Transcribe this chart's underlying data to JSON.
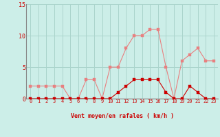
{
  "x": [
    0,
    1,
    2,
    3,
    4,
    5,
    6,
    7,
    8,
    9,
    10,
    11,
    12,
    13,
    14,
    15,
    16,
    17,
    18,
    19,
    20,
    21,
    22,
    23
  ],
  "y_mean": [
    0,
    0,
    0,
    0,
    0,
    0,
    0,
    0,
    0,
    0,
    0,
    1,
    2,
    3,
    3,
    3,
    3,
    1,
    0,
    0,
    2,
    1,
    0,
    0
  ],
  "y_gust": [
    2,
    2,
    2,
    2,
    2,
    0,
    0,
    3,
    3,
    0,
    5,
    5,
    8,
    10,
    10,
    11,
    11,
    5,
    0,
    6,
    7,
    8,
    6,
    6
  ],
  "color_mean": "#cc0000",
  "color_gust": "#e88080",
  "bg_color": "#cceee8",
  "grid_color": "#aad4cc",
  "axis_color": "#888888",
  "xlabel": "Vent moyen/en rafales ( km/h )",
  "ylim": [
    0,
    15
  ],
  "xlim_min": -0.5,
  "xlim_max": 23.5,
  "yticks": [
    0,
    5,
    10,
    15
  ],
  "xticks": [
    0,
    1,
    2,
    3,
    4,
    5,
    6,
    7,
    8,
    9,
    10,
    11,
    12,
    13,
    14,
    15,
    16,
    17,
    18,
    19,
    20,
    21,
    22,
    23
  ],
  "tick_color": "#cc0000",
  "label_color": "#cc0000",
  "markersize": 2.5,
  "linewidth": 0.8,
  "tick_fontsize": 5,
  "xlabel_fontsize": 6
}
